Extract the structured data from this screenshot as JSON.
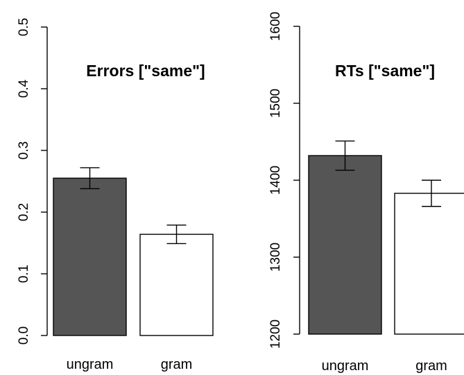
{
  "chart_data": [
    {
      "type": "bar",
      "title": "Errors [\"same\"]",
      "xlabel": "",
      "ylabel": "",
      "categories": [
        "ungram",
        "gram"
      ],
      "values": [
        0.255,
        0.164
      ],
      "error_low": [
        0.238,
        0.149
      ],
      "error_high": [
        0.272,
        0.179
      ],
      "bar_colors": [
        "#555555",
        "#ffffff"
      ],
      "ylim": [
        0.0,
        0.5
      ],
      "yticks": [
        0.0,
        0.1,
        0.2,
        0.3,
        0.4,
        0.5
      ],
      "ytick_labels": [
        "0.0",
        "0.1",
        "0.2",
        "0.3",
        "0.4",
        "0.5"
      ],
      "grid": false
    },
    {
      "type": "bar",
      "title": "RTs [\"same\"]",
      "xlabel": "",
      "ylabel": "",
      "categories": [
        "ungram",
        "gram"
      ],
      "values": [
        1432,
        1383
      ],
      "error_low": [
        1413,
        1366
      ],
      "error_high": [
        1451,
        1400
      ],
      "bar_colors": [
        "#555555",
        "#ffffff"
      ],
      "ylim": [
        1200,
        1600
      ],
      "yticks": [
        1200,
        1300,
        1400,
        1500,
        1600
      ],
      "ytick_labels": [
        "1200",
        "1300",
        "1400",
        "1500",
        "1600"
      ],
      "grid": false
    }
  ]
}
